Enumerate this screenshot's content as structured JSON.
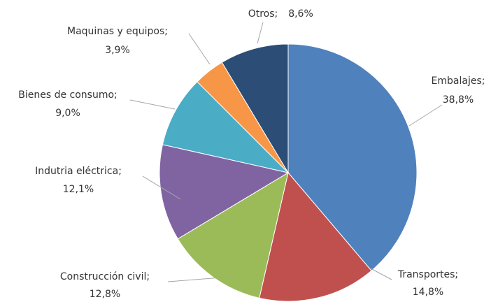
{
  "chart_data": {
    "type": "pie",
    "categories": [
      "Embalajes;",
      "Transportes;",
      "Construcción  civil;",
      "Indutria  eléctrica;",
      "Bienes de consumo;",
      "Maquinas y equipos;",
      "Otros;"
    ],
    "values": [
      38.8,
      14.8,
      12.8,
      12.1,
      9.0,
      3.9,
      8.6
    ],
    "value_labels": [
      "38,8%",
      "14,8%",
      "12,8%",
      "12,1%",
      "9,0%",
      "3,9%",
      "8,6%"
    ],
    "colors": [
      "#4f81bd",
      "#c0504d",
      "#9bbb59",
      "#8064a2",
      "#4bacc6",
      "#f79646",
      "#2c4d75"
    ]
  }
}
